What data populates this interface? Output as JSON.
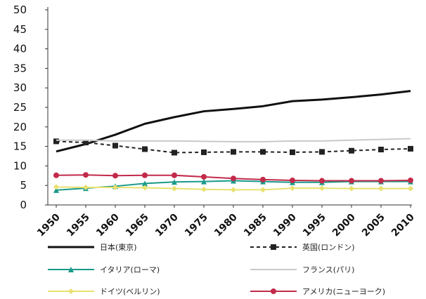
{
  "chart_data": {
    "type": "line",
    "x": [
      "1950",
      "1955",
      "1960",
      "1965",
      "1970",
      "1975",
      "1980",
      "1985",
      "1990",
      "1995",
      "2000",
      "2005",
      "2010"
    ],
    "ylim": [
      0,
      50
    ],
    "yticks": [
      "0",
      "5",
      "10",
      "15",
      "20",
      "25",
      "30",
      "35",
      "40",
      "45",
      "50"
    ],
    "grid": false,
    "legend_position": "bottom",
    "series": [
      {
        "name": "日本(東京)",
        "color": "#111111",
        "marker": "none",
        "dash": "solid",
        "values": [
          13.7,
          15.6,
          18.0,
          20.8,
          22.5,
          24.0,
          24.6,
          25.3,
          26.6,
          27.0,
          27.6,
          28.3,
          29.2
        ]
      },
      {
        "name": "英国(ロンドン)",
        "color": "#222222",
        "marker": "square",
        "dash": "dashed",
        "values": [
          16.3,
          16.0,
          15.2,
          14.3,
          13.4,
          13.5,
          13.6,
          13.6,
          13.5,
          13.6,
          13.9,
          14.2,
          14.4
        ]
      },
      {
        "name": "イタリア(ローマ)",
        "color": "#1a9a8a",
        "marker": "triangle",
        "dash": "solid",
        "values": [
          3.8,
          4.3,
          4.8,
          5.5,
          5.9,
          6.0,
          6.2,
          6.0,
          5.8,
          5.8,
          6.0,
          6.0,
          6.0
        ]
      },
      {
        "name": "フランス(パリ)",
        "color": "#c9c9c9",
        "marker": "none",
        "dash": "solid",
        "values": [
          16.6,
          16.6,
          16.4,
          16.4,
          16.4,
          16.3,
          16.2,
          16.2,
          16.4,
          16.4,
          16.6,
          16.8,
          17.0
        ]
      },
      {
        "name": "ドイツ(ベルリン)",
        "color": "#e8e070",
        "marker": "diamond",
        "dash": "solid",
        "values": [
          4.6,
          4.5,
          4.5,
          4.4,
          4.2,
          4.0,
          3.9,
          3.9,
          4.3,
          4.3,
          4.2,
          4.2,
          4.2
        ]
      },
      {
        "name": "アメリカ(ニューヨーク)",
        "color": "#c22a4a",
        "marker": "circle",
        "dash": "solid",
        "values": [
          7.6,
          7.7,
          7.5,
          7.6,
          7.6,
          7.2,
          6.8,
          6.5,
          6.3,
          6.2,
          6.2,
          6.2,
          6.3
        ]
      }
    ]
  }
}
